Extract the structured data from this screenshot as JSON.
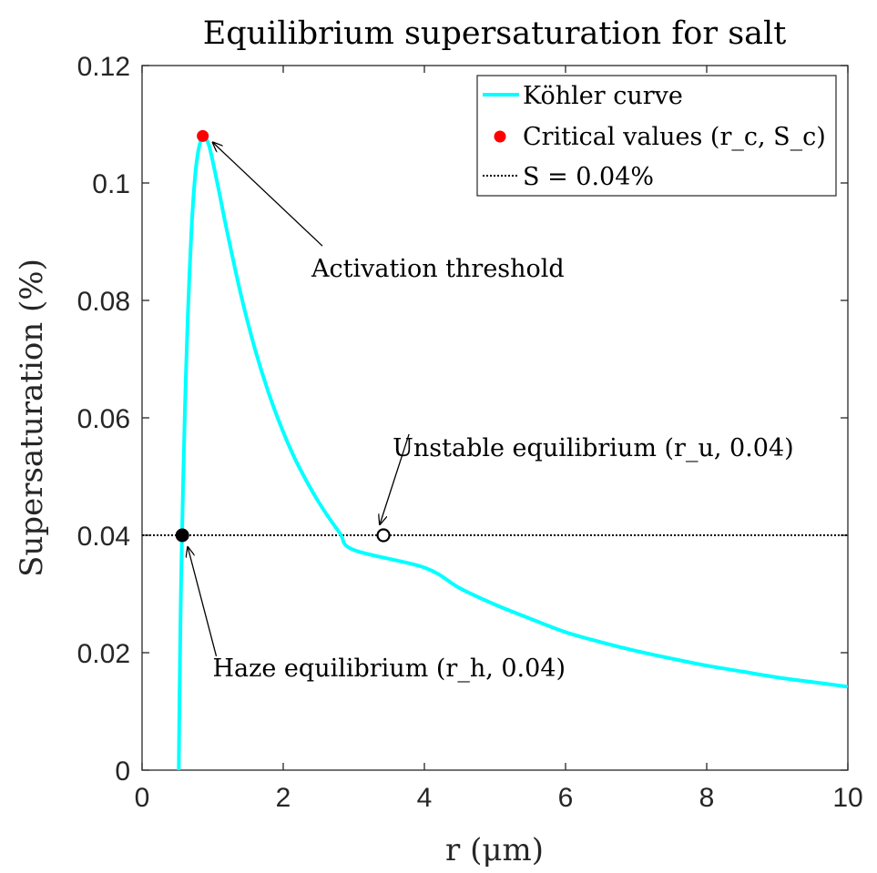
{
  "chart_data": {
    "type": "line",
    "title": "Equilibrium supersaturation for salt",
    "xlabel": "r (μm)",
    "ylabel": "Supersaturation (%)",
    "xlim": [
      0,
      10
    ],
    "ylim": [
      0,
      0.12
    ],
    "xticks": [
      0,
      2,
      4,
      6,
      8,
      10
    ],
    "xtick_labels": [
      "0",
      "2",
      "4",
      "6",
      "8",
      "10"
    ],
    "yticks": [
      0,
      0.02,
      0.04,
      0.06,
      0.08,
      0.1,
      0.12
    ],
    "ytick_labels": [
      "0",
      "0.02",
      "0.04",
      "0.06",
      "0.08",
      "0.1",
      "0.12"
    ],
    "colors": {
      "curve": "#00ffff",
      "critical": "#ff0000",
      "haze": "#000000",
      "unstable_fill": "#ffffff",
      "threshold_line": "#000000"
    },
    "series": [
      {
        "name": "Köhler curve",
        "x": [
          0.52,
          0.53,
          0.55,
          0.58,
          0.6,
          0.62,
          0.65,
          0.7,
          0.75,
          0.8,
          0.86,
          0.9,
          0.95,
          1.0,
          1.1,
          1.2,
          1.4,
          1.6,
          1.8,
          2.0,
          2.2,
          2.5,
          2.8,
          3.0,
          3.4,
          4.0,
          4.5,
          5.0,
          5.5,
          6.0,
          6.5,
          7.0,
          7.5,
          8.0,
          8.5,
          9.0,
          9.5,
          10.0
        ],
        "y": [
          0.0,
          0.012,
          0.03,
          0.048,
          0.058,
          0.067,
          0.078,
          0.092,
          0.101,
          0.1057,
          0.108,
          0.1077,
          0.1063,
          0.1038,
          0.098,
          0.092,
          0.081,
          0.0717,
          0.064,
          0.0576,
          0.0522,
          0.0457,
          0.0404,
          0.0375,
          0.0404,
          0.0345,
          0.031,
          0.0282,
          0.0258,
          0.0235,
          0.0218,
          0.0203,
          0.019,
          0.0178,
          0.0168,
          0.0158,
          0.015,
          0.0142
        ]
      },
      {
        "name": "S = 0.04%",
        "x": [
          0,
          10
        ],
        "y": [
          0.04,
          0.04
        ]
      }
    ],
    "points": {
      "critical": {
        "x": 0.86,
        "y": 0.108
      },
      "haze": {
        "x": 0.57,
        "y": 0.04
      },
      "unstable": {
        "x": 3.42,
        "y": 0.04
      }
    },
    "annotations": [
      {
        "text": "Activation threshold",
        "target": "critical",
        "text_x": 2.4,
        "text_y": 0.084
      },
      {
        "text": "Unstable equilibrium (r_u, 0.04)",
        "target": "unstable",
        "text_x": 3.55,
        "text_y": 0.0535
      },
      {
        "text": "Haze equilibrium (r_h, 0.04)",
        "target": "haze",
        "text_x": 1.0,
        "text_y": 0.016
      }
    ],
    "legend": {
      "placement": "top-right",
      "entries": [
        "Köhler curve",
        "Critical values (r_c, S_c)",
        "S = 0.04%"
      ]
    }
  }
}
